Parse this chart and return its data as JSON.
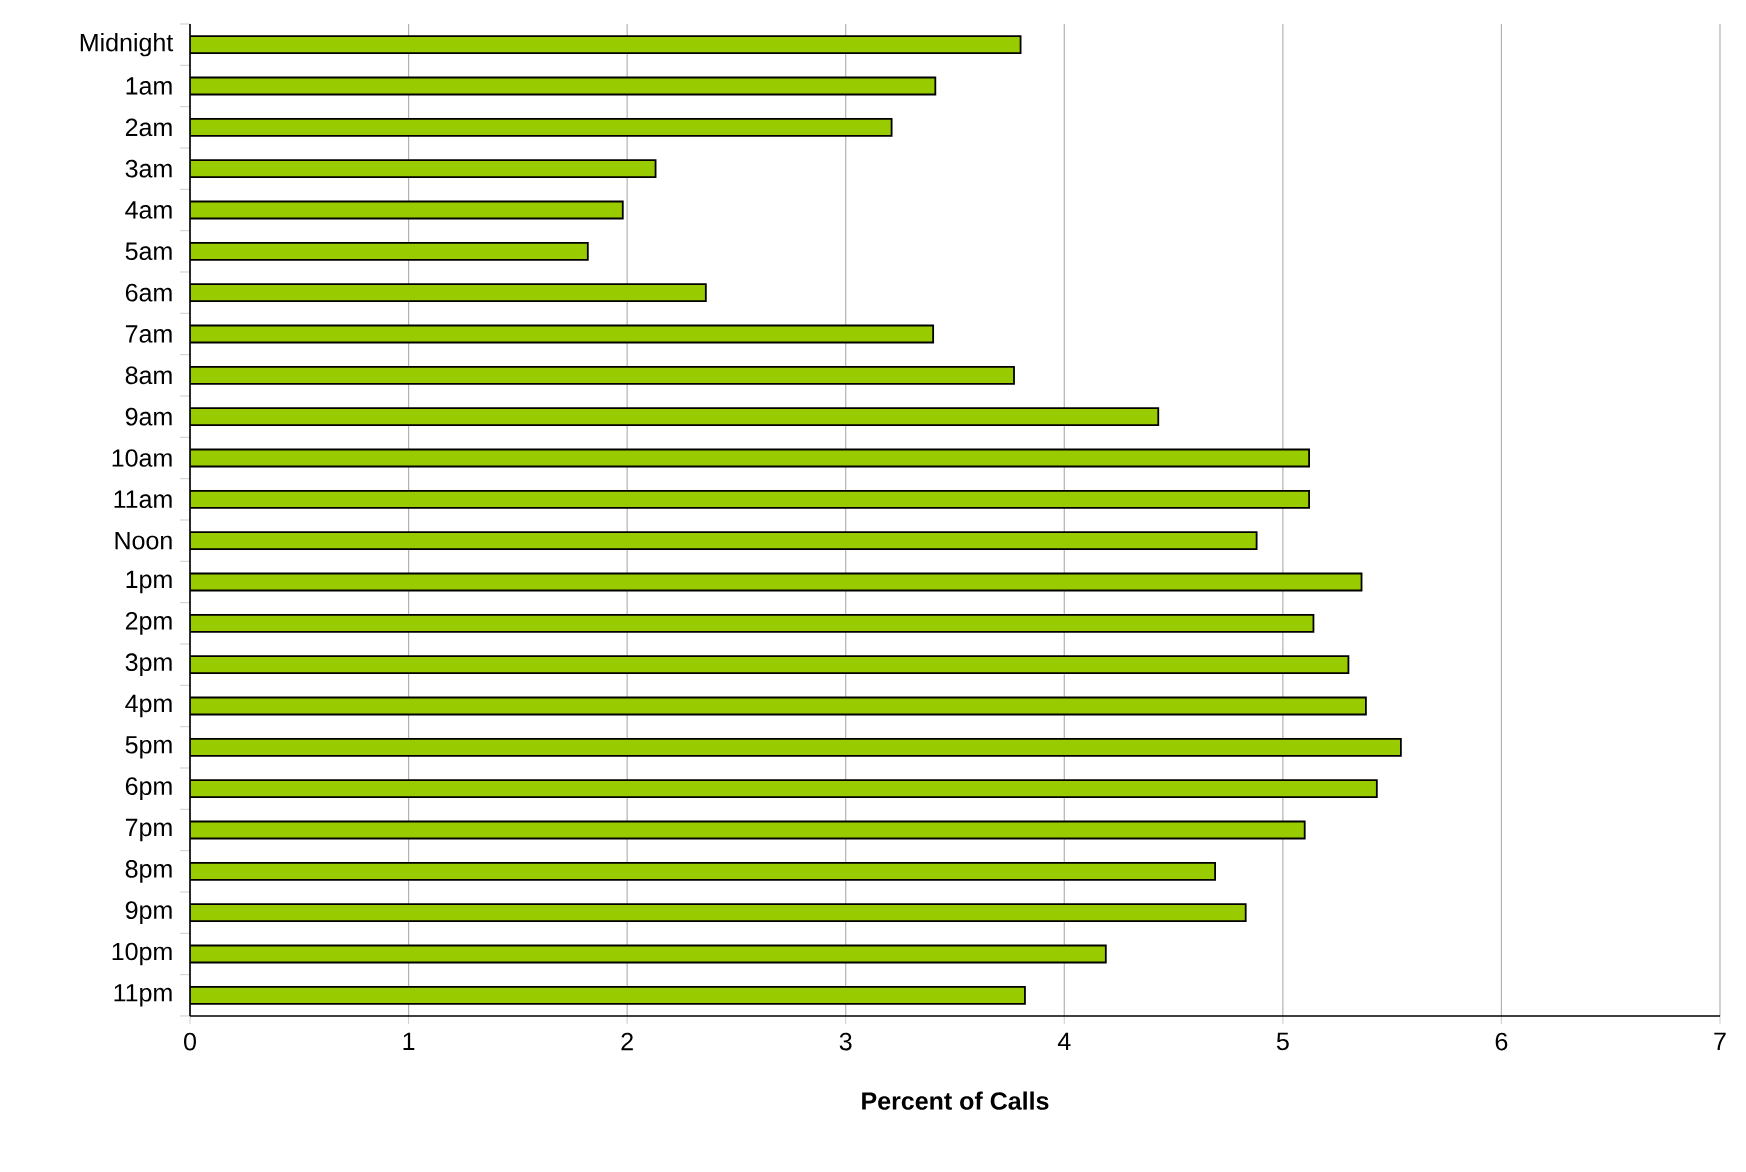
{
  "chart_data": {
    "type": "bar",
    "orientation": "horizontal",
    "xlabel": "Percent of Calls",
    "categories": [
      "Midnight",
      "1am",
      "2am",
      "3am",
      "4am",
      "5am",
      "6am",
      "7am",
      "8am",
      "9am",
      "10am",
      "11am",
      "Noon",
      "1pm",
      "2pm",
      "3pm",
      "4pm",
      "5pm",
      "6pm",
      "7pm",
      "8pm",
      "9pm",
      "10pm",
      "11pm"
    ],
    "values": [
      3.8,
      3.41,
      3.21,
      2.13,
      1.98,
      1.82,
      2.36,
      3.4,
      3.77,
      4.43,
      5.12,
      5.12,
      4.88,
      5.36,
      5.14,
      5.3,
      5.38,
      5.54,
      5.43,
      5.1,
      4.69,
      4.83,
      4.19,
      3.82
    ],
    "color": "#99cc00",
    "xlim": [
      0,
      7
    ],
    "xticks": [
      0,
      1,
      2,
      3,
      4,
      5,
      6,
      7
    ],
    "grid": "x"
  }
}
